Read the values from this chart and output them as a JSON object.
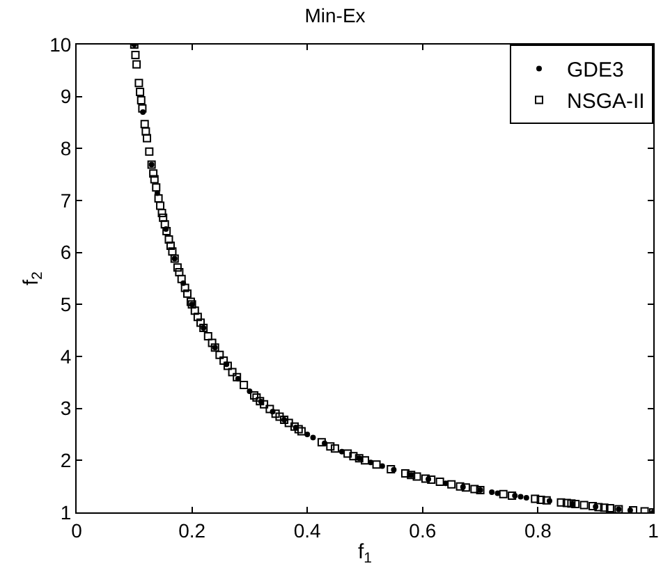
{
  "chart_data": {
    "type": "scatter",
    "title": "Min-Ex",
    "xlabel": "f$_{1}$",
    "ylabel": "f$_{2}$",
    "xlim": [
      0,
      1
    ],
    "xticks": [
      0,
      0.2,
      0.4,
      0.6,
      0.8,
      1
    ],
    "ylim": [
      1,
      10
    ],
    "yticks": [
      1,
      2,
      3,
      4,
      5,
      6,
      7,
      8,
      9,
      10
    ],
    "legend": "top right",
    "series": [
      {
        "name": "GDE3",
        "color": "#000000",
        "marker": "circle",
        "x": [
          0.1,
          0.115,
          0.13,
          0.14,
          0.155,
          0.17,
          0.185,
          0.2,
          0.22,
          0.24,
          0.26,
          0.28,
          0.3,
          0.32,
          0.34,
          0.36,
          0.38,
          0.4,
          0.41,
          0.43,
          0.46,
          0.49,
          0.51,
          0.53,
          0.55,
          0.58,
          0.61,
          0.64,
          0.67,
          0.7,
          0.72,
          0.73,
          0.76,
          0.77,
          0.78,
          0.82,
          0.86,
          0.9,
          0.94,
          0.96,
          1.0
        ],
        "values": [
          10.0,
          8.7,
          7.69,
          7.14,
          6.45,
          5.88,
          5.41,
          5.0,
          4.55,
          4.17,
          3.85,
          3.57,
          3.33,
          3.13,
          2.94,
          2.78,
          2.63,
          2.5,
          2.44,
          2.33,
          2.17,
          2.04,
          1.96,
          1.89,
          1.82,
          1.72,
          1.64,
          1.56,
          1.49,
          1.43,
          1.39,
          1.37,
          1.32,
          1.3,
          1.28,
          1.22,
          1.16,
          1.11,
          1.06,
          1.04,
          1.0
        ]
      },
      {
        "name": "NSGA-II",
        "color": "#000000",
        "marker": "square",
        "x": [
          0.1,
          0.102,
          0.104,
          0.108,
          0.11,
          0.112,
          0.114,
          0.118,
          0.12,
          0.122,
          0.126,
          0.13,
          0.133,
          0.135,
          0.138,
          0.142,
          0.145,
          0.148,
          0.15,
          0.153,
          0.156,
          0.16,
          0.163,
          0.166,
          0.17,
          0.175,
          0.178,
          0.182,
          0.188,
          0.192,
          0.198,
          0.2,
          0.205,
          0.21,
          0.215,
          0.22,
          0.228,
          0.235,
          0.24,
          0.248,
          0.255,
          0.262,
          0.27,
          0.278,
          0.29,
          0.308,
          0.312,
          0.318,
          0.325,
          0.335,
          0.345,
          0.352,
          0.36,
          0.368,
          0.378,
          0.385,
          0.39,
          0.425,
          0.44,
          0.448,
          0.47,
          0.48,
          0.49,
          0.5,
          0.52,
          0.545,
          0.57,
          0.58,
          0.59,
          0.605,
          0.615,
          0.63,
          0.65,
          0.665,
          0.675,
          0.69,
          0.7,
          0.74,
          0.755,
          0.795,
          0.805,
          0.815,
          0.84,
          0.85,
          0.858,
          0.865,
          0.88,
          0.895,
          0.905,
          0.915,
          0.925,
          0.94,
          0.965,
          0.985,
          1.0
        ],
        "values": [
          10.0,
          9.8,
          9.62,
          9.26,
          9.09,
          8.93,
          8.77,
          8.47,
          8.33,
          8.2,
          7.94,
          7.69,
          7.52,
          7.41,
          7.25,
          7.04,
          6.9,
          6.76,
          6.67,
          6.54,
          6.41,
          6.25,
          6.13,
          6.02,
          5.88,
          5.71,
          5.62,
          5.49,
          5.32,
          5.21,
          5.05,
          5.0,
          4.88,
          4.76,
          4.65,
          4.55,
          4.39,
          4.26,
          4.17,
          4.03,
          3.92,
          3.82,
          3.7,
          3.6,
          3.45,
          3.25,
          3.21,
          3.14,
          3.08,
          2.99,
          2.9,
          2.84,
          2.78,
          2.72,
          2.65,
          2.6,
          2.56,
          2.35,
          2.27,
          2.23,
          2.13,
          2.08,
          2.04,
          2.0,
          1.92,
          1.83,
          1.75,
          1.72,
          1.69,
          1.65,
          1.63,
          1.59,
          1.54,
          1.5,
          1.48,
          1.45,
          1.43,
          1.35,
          1.32,
          1.26,
          1.24,
          1.23,
          1.19,
          1.18,
          1.17,
          1.16,
          1.14,
          1.12,
          1.1,
          1.09,
          1.08,
          1.06,
          1.04,
          1.02,
          1.0
        ]
      }
    ]
  }
}
